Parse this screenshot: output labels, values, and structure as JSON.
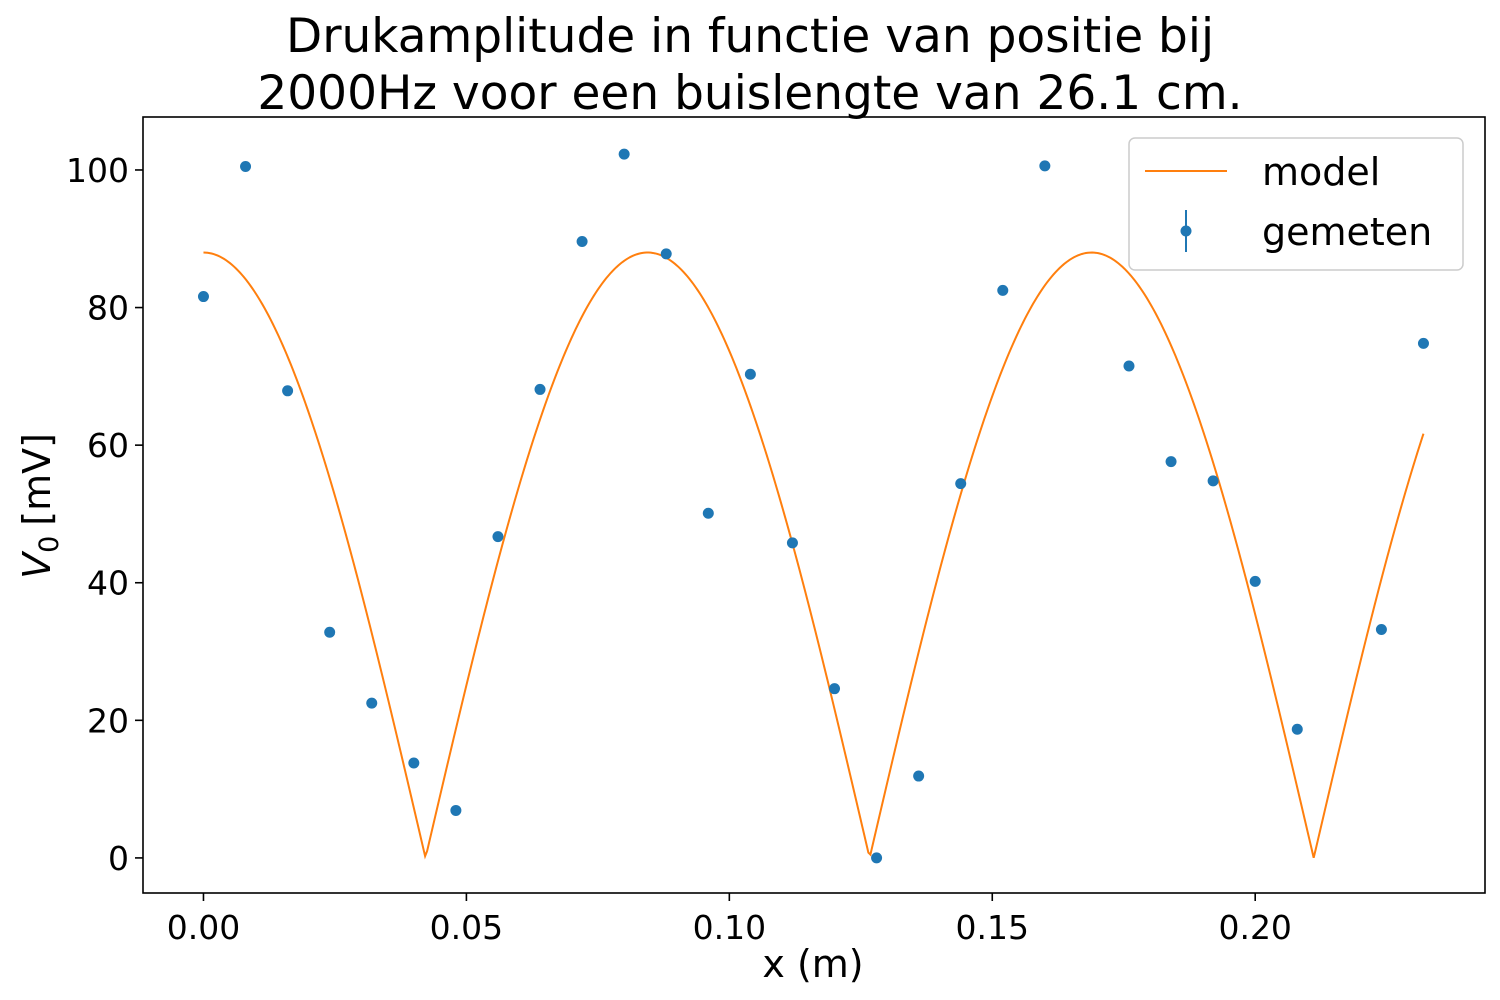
{
  "chart_data": {
    "type": "scatter",
    "title_line1": "Drukamplitude in functie van positie bij",
    "title_line2": "2000Hz voor een buislengte van 26.1 cm.",
    "xlabel": "x (m)",
    "ylabel_main": "V",
    "ylabel_sub": "0",
    "ylabel_unit": "[mV]",
    "xlim": [
      -0.0115,
      0.2437
    ],
    "ylim": [
      -5.1,
      107.7
    ],
    "xticks": [
      "0.00",
      "0.05",
      "0.10",
      "0.15",
      "0.20"
    ],
    "xtick_values": [
      0.0,
      0.05,
      0.1,
      0.15,
      0.2
    ],
    "yticks": [
      "0",
      "20",
      "40",
      "60",
      "80",
      "100"
    ],
    "ytick_values": [
      0,
      20,
      40,
      60,
      80,
      100
    ],
    "grid": false,
    "legend_position": "top-right",
    "series": [
      {
        "name": "model",
        "kind": "line",
        "color": "#ff7f0e",
        "amplitude": 88,
        "wavenumber": 37.2,
        "x_range": [
          0.0,
          0.232
        ]
      },
      {
        "name": "gemeten",
        "kind": "errorbar-points",
        "color": "#1f77b4",
        "points": [
          [
            0.0,
            81.6
          ],
          [
            0.008,
            100.5
          ],
          [
            0.016,
            67.9
          ],
          [
            0.024,
            32.8
          ],
          [
            0.032,
            22.5
          ],
          [
            0.04,
            13.8
          ],
          [
            0.048,
            6.9
          ],
          [
            0.056,
            46.7
          ],
          [
            0.064,
            68.1
          ],
          [
            0.072,
            89.6
          ],
          [
            0.08,
            102.3
          ],
          [
            0.088,
            87.8
          ],
          [
            0.096,
            50.1
          ],
          [
            0.104,
            70.3
          ],
          [
            0.112,
            45.8
          ],
          [
            0.12,
            24.6
          ],
          [
            0.128,
            0.0
          ],
          [
            0.136,
            11.9
          ],
          [
            0.144,
            54.4
          ],
          [
            0.152,
            82.5
          ],
          [
            0.16,
            100.6
          ],
          [
            0.176,
            71.5
          ],
          [
            0.184,
            57.6
          ],
          [
            0.192,
            54.8
          ],
          [
            0.2,
            40.2
          ],
          [
            0.208,
            18.7
          ],
          [
            0.224,
            33.2
          ],
          [
            0.232,
            74.8
          ]
        ]
      }
    ]
  }
}
